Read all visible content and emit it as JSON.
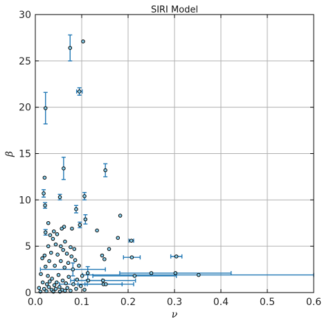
{
  "chart_data": {
    "type": "scatter",
    "title": "SIRI Model",
    "xlabel": "ν",
    "ylabel": "β",
    "xlim": [
      0,
      0.6
    ],
    "ylim": [
      0,
      30
    ],
    "xticks": [
      "0.0",
      "0.1",
      "0.2",
      "0.3",
      "0.4",
      "0.5",
      "0.6"
    ],
    "yticks": [
      "0",
      "5",
      "10",
      "15",
      "20",
      "25",
      "30"
    ],
    "grid": true,
    "colors": {
      "marker_face": "#87ceeb",
      "marker_edge": "#000000",
      "errorbar": "#1f77b4",
      "grid": "#b0b0b0"
    },
    "points": [
      {
        "x": 0.075,
        "y": 26.4,
        "yerr": 1.4
      },
      {
        "x": 0.103,
        "y": 27.1
      },
      {
        "x": 0.095,
        "y": 21.7,
        "xerr": 0.006,
        "yerr": 0.4
      },
      {
        "x": 0.022,
        "y": 19.9,
        "yerr": 1.7
      },
      {
        "x": 0.061,
        "y": 13.4,
        "yerr": 1.2
      },
      {
        "x": 0.151,
        "y": 13.2,
        "yerr": 0.7
      },
      {
        "x": 0.02,
        "y": 12.4
      },
      {
        "x": 0.018,
        "y": 10.7,
        "yerr": 0.4
      },
      {
        "x": 0.053,
        "y": 10.3,
        "yerr": 0.3
      },
      {
        "x": 0.106,
        "y": 10.4,
        "yerr": 0.4
      },
      {
        "x": 0.021,
        "y": 9.4,
        "yerr": 0.3
      },
      {
        "x": 0.088,
        "y": 9.0,
        "yerr": 0.4
      },
      {
        "x": 0.183,
        "y": 8.3
      },
      {
        "x": 0.108,
        "y": 7.9,
        "yerr": 0.5
      },
      {
        "x": 0.028,
        "y": 7.5
      },
      {
        "x": 0.062,
        "y": 7.1
      },
      {
        "x": 0.057,
        "y": 6.9
      },
      {
        "x": 0.079,
        "y": 6.9
      },
      {
        "x": 0.096,
        "y": 7.3,
        "yerr": 0.3
      },
      {
        "x": 0.133,
        "y": 6.7
      },
      {
        "x": 0.022,
        "y": 6.5,
        "yerr": 0.3
      },
      {
        "x": 0.04,
        "y": 6.6
      },
      {
        "x": 0.047,
        "y": 6.3
      },
      {
        "x": 0.032,
        "y": 6.2
      },
      {
        "x": 0.038,
        "y": 5.8
      },
      {
        "x": 0.064,
        "y": 5.5
      },
      {
        "x": 0.178,
        "y": 5.9
      },
      {
        "x": 0.207,
        "y": 5.6,
        "xerr": 0.005
      },
      {
        "x": 0.028,
        "y": 5.0
      },
      {
        "x": 0.044,
        "y": 5.2
      },
      {
        "x": 0.055,
        "y": 5.0
      },
      {
        "x": 0.06,
        "y": 4.6
      },
      {
        "x": 0.076,
        "y": 4.9
      },
      {
        "x": 0.084,
        "y": 4.7
      },
      {
        "x": 0.159,
        "y": 4.7
      },
      {
        "x": 0.02,
        "y": 4.0
      },
      {
        "x": 0.034,
        "y": 4.3
      },
      {
        "x": 0.048,
        "y": 4.1
      },
      {
        "x": 0.068,
        "y": 4.2
      },
      {
        "x": 0.078,
        "y": 3.9
      },
      {
        "x": 0.144,
        "y": 4.0
      },
      {
        "x": 0.149,
        "y": 3.6
      },
      {
        "x": 0.208,
        "y": 3.8,
        "xerr": 0.018
      },
      {
        "x": 0.304,
        "y": 3.9,
        "xerr": 0.012
      },
      {
        "x": 0.015,
        "y": 3.7
      },
      {
        "x": 0.03,
        "y": 3.4
      },
      {
        "x": 0.055,
        "y": 3.4
      },
      {
        "x": 0.071,
        "y": 3.2
      },
      {
        "x": 0.086,
        "y": 3.5
      },
      {
        "x": 0.022,
        "y": 2.8
      },
      {
        "x": 0.042,
        "y": 2.9
      },
      {
        "x": 0.063,
        "y": 2.7
      },
      {
        "x": 0.081,
        "y": 2.5,
        "xerr": 0.07,
        "yerr": 0.7
      },
      {
        "x": 0.094,
        "y": 2.9
      },
      {
        "x": 0.113,
        "y": 2.1,
        "yerr": 0.7
      },
      {
        "x": 0.25,
        "y": 2.1
      },
      {
        "x": 0.302,
        "y": 2.1,
        "xerr": 0.12
      },
      {
        "x": 0.352,
        "y": 1.9,
        "xerr": 0.25
      },
      {
        "x": 0.214,
        "y": 1.8,
        "xerr": 0.09
      },
      {
        "x": 0.012,
        "y": 2.0
      },
      {
        "x": 0.027,
        "y": 1.8
      },
      {
        "x": 0.036,
        "y": 1.5
      },
      {
        "x": 0.05,
        "y": 1.9
      },
      {
        "x": 0.059,
        "y": 1.3
      },
      {
        "x": 0.072,
        "y": 1.7
      },
      {
        "x": 0.09,
        "y": 1.4
      },
      {
        "x": 0.101,
        "y": 1.8
      },
      {
        "x": 0.114,
        "y": 1.3,
        "xerr": 0.03
      },
      {
        "x": 0.146,
        "y": 1.3,
        "xerr": 0.07
      },
      {
        "x": 0.016,
        "y": 1.1
      },
      {
        "x": 0.025,
        "y": 0.9
      },
      {
        "x": 0.031,
        "y": 1.2
      },
      {
        "x": 0.041,
        "y": 0.8
      },
      {
        "x": 0.046,
        "y": 1.1
      },
      {
        "x": 0.052,
        "y": 0.6
      },
      {
        "x": 0.066,
        "y": 1.0
      },
      {
        "x": 0.082,
        "y": 0.9,
        "xerr": 0.03
      },
      {
        "x": 0.098,
        "y": 0.7
      },
      {
        "x": 0.147,
        "y": 0.9,
        "xerr": 0.04
      },
      {
        "x": 0.152,
        "y": 0.9,
        "xerr": 0.06
      },
      {
        "x": 0.008,
        "y": 0.5
      },
      {
        "x": 0.019,
        "y": 0.4
      },
      {
        "x": 0.029,
        "y": 0.6
      },
      {
        "x": 0.035,
        "y": 0.3
      },
      {
        "x": 0.044,
        "y": 0.4
      },
      {
        "x": 0.058,
        "y": 0.3
      },
      {
        "x": 0.069,
        "y": 0.5
      },
      {
        "x": 0.076,
        "y": 0.2
      },
      {
        "x": 0.088,
        "y": 0.4
      },
      {
        "x": 0.106,
        "y": 0.3
      },
      {
        "x": 0.011,
        "y": 0.1
      },
      {
        "x": 0.024,
        "y": 0.15
      },
      {
        "x": 0.039,
        "y": 0.1
      },
      {
        "x": 0.053,
        "y": 0.1
      },
      {
        "x": 0.064,
        "y": 0.2
      }
    ]
  }
}
